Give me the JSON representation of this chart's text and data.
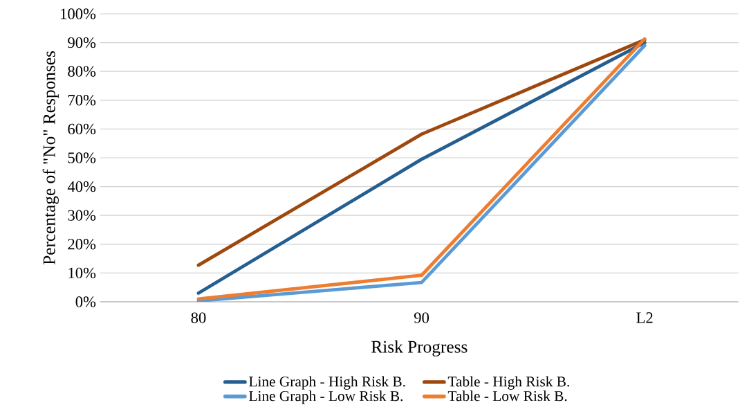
{
  "chart_data": {
    "type": "line",
    "xlabel": "Risk Progress",
    "ylabel": "Percentage of \"No\" Responses",
    "categories": [
      "80",
      "90",
      "L2"
    ],
    "series": [
      {
        "name": "Line Graph - High Risk B.",
        "color": "#255e91",
        "values": [
          3,
          49.5,
          90
        ]
      },
      {
        "name": "Table - High Risk B.",
        "color": "#9e480e",
        "values": [
          12.7,
          58.2,
          91
        ]
      },
      {
        "name": "Line Graph - Low Risk B.",
        "color": "#5b9bd5",
        "values": [
          0.3,
          6.7,
          89
        ]
      },
      {
        "name": "Table - Low Risk B.",
        "color": "#ed7d31",
        "values": [
          1,
          9.2,
          91.3
        ]
      }
    ],
    "ylim": [
      0,
      100
    ],
    "yticks": [
      {
        "value": 0,
        "label": "0%"
      },
      {
        "value": 10,
        "label": "10%"
      },
      {
        "value": 20,
        "label": "20%"
      },
      {
        "value": 30,
        "label": "30%"
      },
      {
        "value": 40,
        "label": "40%"
      },
      {
        "value": 50,
        "label": "50%"
      },
      {
        "value": 60,
        "label": "60%"
      },
      {
        "value": 70,
        "label": "70%"
      },
      {
        "value": 80,
        "label": "80%"
      },
      {
        "value": 90,
        "label": "90%"
      },
      {
        "value": 100,
        "label": "100%"
      }
    ],
    "grid": "y",
    "legend": "bottom",
    "marker": "none",
    "line_style": "solid"
  }
}
